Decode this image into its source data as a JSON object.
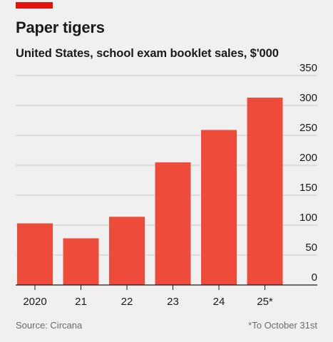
{
  "brand_color": "#e3120b",
  "bar_color": "#ee4b3b",
  "header": {
    "title": "Paper tigers",
    "subtitle": "United States, school exam booklet sales, $'000"
  },
  "footer": {
    "source": "Source: Circana",
    "note": "*To October 31st"
  },
  "chart_data": {
    "type": "bar",
    "title": "Paper tigers",
    "subtitle": "United States, school exam booklet sales, $'000",
    "categories": [
      "2020",
      "21",
      "22",
      "23",
      "24",
      "25*"
    ],
    "values": [
      103,
      78,
      114,
      205,
      259,
      313
    ],
    "ylim": [
      0,
      350
    ],
    "yticks": [
      0,
      50,
      100,
      150,
      200,
      250,
      300,
      350
    ],
    "xlabel": "",
    "ylabel": "",
    "grid": true,
    "y_axis_side": "right",
    "legend": "none"
  }
}
